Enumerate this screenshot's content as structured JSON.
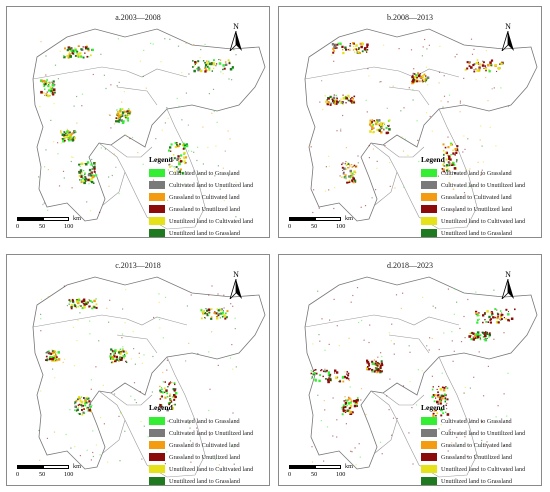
{
  "panels": [
    {
      "id": "a",
      "title": "a.2003—2008"
    },
    {
      "id": "b",
      "title": "b.2008—2013"
    },
    {
      "id": "c",
      "title": "c.2013—2018"
    },
    {
      "id": "d",
      "title": "d.2018—2023"
    }
  ],
  "north_arrow": "N",
  "legend": {
    "title": "Legend",
    "items": [
      {
        "label": "Cultivated land to Grassland",
        "color": "#33ee33"
      },
      {
        "label": "Cultivated land to Unutilized land",
        "color": "#7a7a7a"
      },
      {
        "label": "Grassland to Cultivated land",
        "color": "#f39c12"
      },
      {
        "label": "Grassland to Unutilized land",
        "color": "#8b0a0a"
      },
      {
        "label": "Unutilized land to Cultivated land",
        "color": "#e6e21a"
      },
      {
        "label": "Unutilized land to Grassland",
        "color": "#1f7a1f"
      }
    ]
  },
  "scalebar": {
    "ticks": [
      "0",
      "50",
      "100"
    ],
    "unit": "km"
  }
}
